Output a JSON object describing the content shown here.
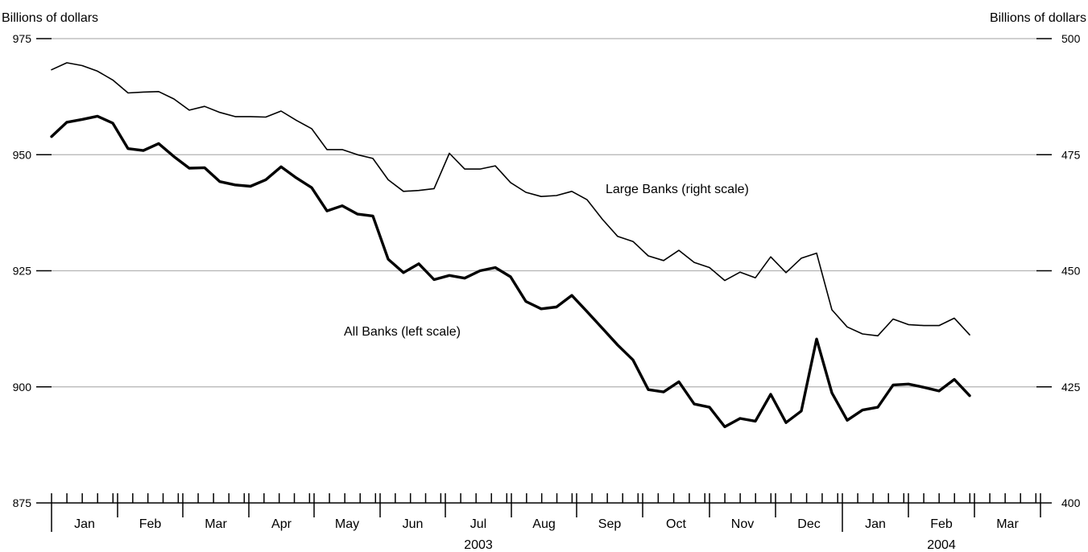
{
  "chart_data": {
    "type": "line",
    "left_axis": {
      "title": "Billions of dollars",
      "ylim": [
        875,
        975
      ],
      "ticks": [
        875,
        900,
        925,
        950,
        975
      ]
    },
    "right_axis": {
      "title": "Billions of dollars",
      "ylim": [
        400,
        500
      ],
      "ticks": [
        400,
        425,
        450,
        475,
        500
      ]
    },
    "grid": true,
    "months": [
      "Jan",
      "Feb",
      "Mar",
      "Apr",
      "May",
      "Jun",
      "Jul",
      "Aug",
      "Sep",
      "Oct",
      "Nov",
      "Dec",
      "Jan",
      "Feb",
      "Mar"
    ],
    "years": [
      {
        "label": "2003",
        "month_index": 6
      },
      {
        "label": "2004",
        "month_index": 13
      }
    ],
    "series": [
      {
        "name": "Large Banks (right scale)",
        "axis": "right",
        "values": [
          493.3,
          494.8,
          494.2,
          493.0,
          491.1,
          488.3,
          488.5,
          488.6,
          487.0,
          484.6,
          485.4,
          484.1,
          483.2,
          483.2,
          483.1,
          484.4,
          482.4,
          480.6,
          476.1,
          476.1,
          475.0,
          474.2,
          469.6,
          467.1,
          467.3,
          467.7,
          475.3,
          471.9,
          471.9,
          472.6,
          469.0,
          466.9,
          466.0,
          466.2,
          467.1,
          465.3,
          461.1,
          457.4,
          456.3,
          453.2,
          452.2,
          454.4,
          451.8,
          450.7,
          447.9,
          449.7,
          448.5,
          453.0,
          449.6,
          452.7,
          453.8,
          441.6,
          437.9,
          436.4,
          436.0,
          439.6,
          438.4,
          438.2,
          438.2,
          439.8,
          436.2
        ]
      },
      {
        "name": "All Banks (left scale)",
        "axis": "left",
        "values": [
          953.9,
          957.0,
          957.6,
          958.3,
          956.8,
          951.3,
          950.9,
          952.4,
          949.6,
          947.1,
          947.2,
          944.2,
          943.5,
          943.2,
          944.6,
          947.4,
          945.0,
          942.9,
          937.9,
          939.0,
          937.2,
          936.8,
          927.5,
          924.6,
          926.5,
          923.1,
          924.0,
          923.4,
          925.0,
          925.7,
          923.7,
          918.4,
          916.8,
          917.2,
          919.7,
          916.2,
          912.6,
          909.0,
          905.8,
          899.4,
          898.9,
          901.1,
          896.3,
          895.6,
          891.4,
          893.2,
          892.6,
          898.4,
          892.3,
          894.8,
          910.3,
          898.7,
          892.8,
          895.0,
          895.6,
          900.4,
          900.6,
          899.9,
          899.1,
          901.6,
          898.1
        ]
      }
    ]
  }
}
